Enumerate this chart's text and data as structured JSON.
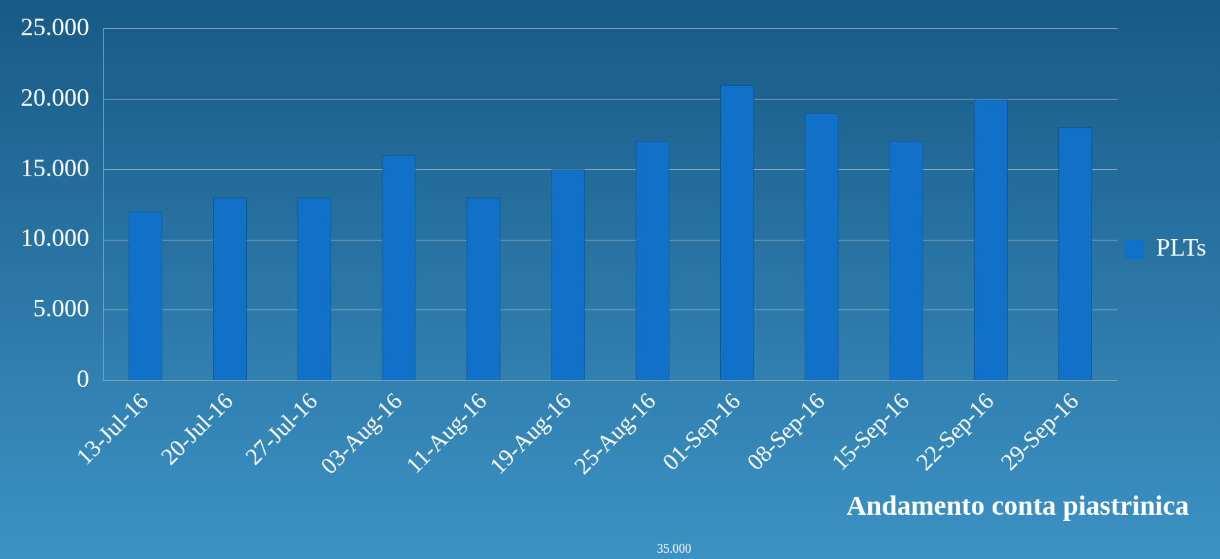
{
  "chart_data": {
    "type": "bar",
    "categories": [
      "13-Jul-16",
      "20-Jul-16",
      "27-Jul-16",
      "03-Aug-16",
      "11-Aug-16",
      "19-Aug-16",
      "25-Aug-16",
      "01-Sep-16",
      "08-Sep-16",
      "15-Sep-16",
      "22-Sep-16",
      "29-Sep-16"
    ],
    "series": [
      {
        "name": "PLTs",
        "color": "#1170c8",
        "values": [
          12000,
          13000,
          13000,
          16000,
          13000,
          15000,
          17000,
          21000,
          19000,
          17000,
          20000,
          18000
        ]
      }
    ],
    "ylim": [
      0,
      25000
    ],
    "yticks": [
      {
        "value": 0,
        "label": "0"
      },
      {
        "value": 5000,
        "label": "5.000"
      },
      {
        "value": 10000,
        "label": "10.000"
      },
      {
        "value": 15000,
        "label": "15.000"
      },
      {
        "value": 20000,
        "label": "20.000"
      },
      {
        "value": 25000,
        "label": "25.000"
      }
    ],
    "grid": "y",
    "legend": "right",
    "annotations": [
      "Andamento conta piastrinica",
      "35.000"
    ]
  }
}
